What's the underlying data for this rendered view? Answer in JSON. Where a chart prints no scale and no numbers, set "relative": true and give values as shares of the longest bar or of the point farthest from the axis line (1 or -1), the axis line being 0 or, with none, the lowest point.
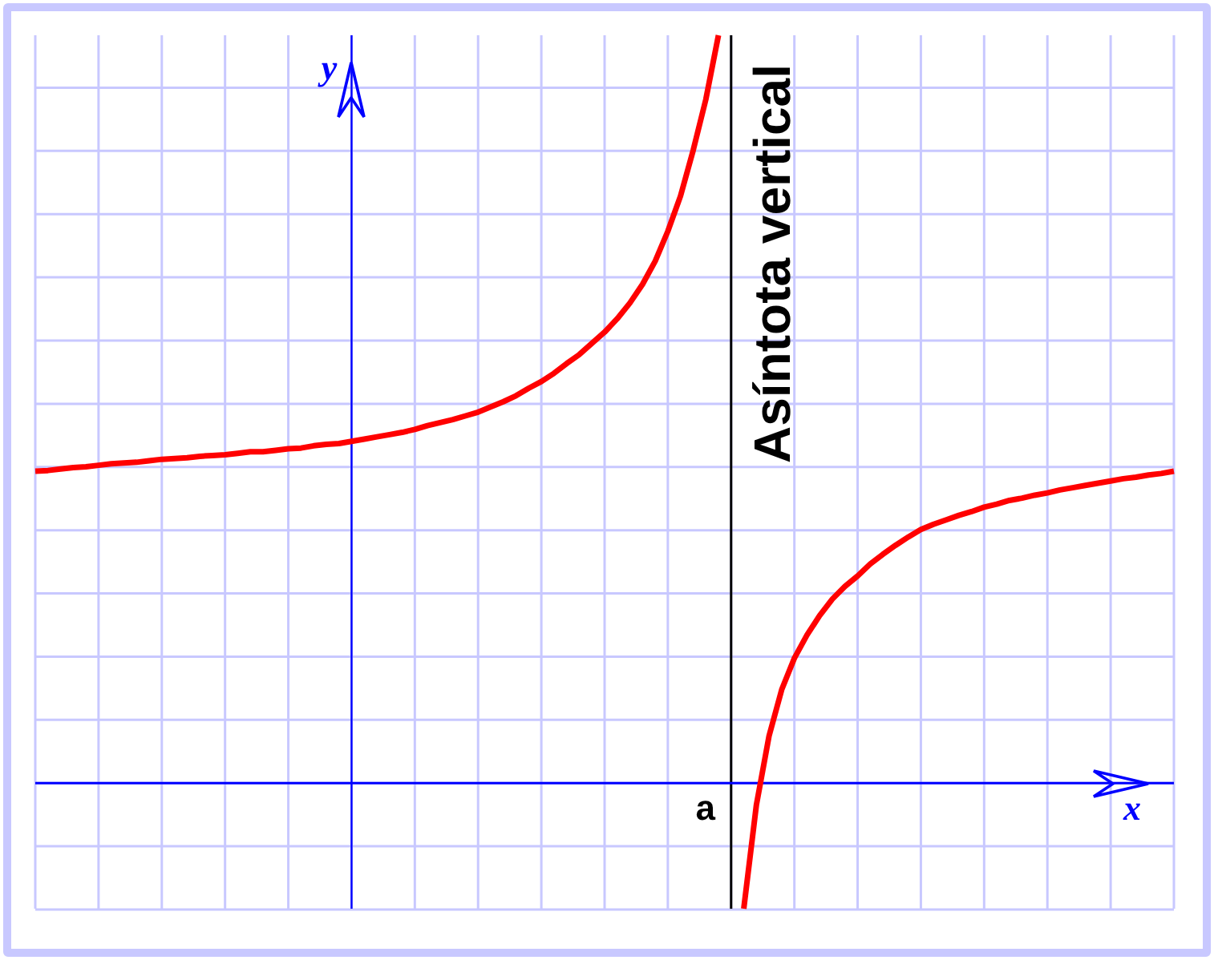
{
  "chart_data": {
    "type": "line",
    "relative": true,
    "xlabel": "x",
    "ylabel": "y",
    "annotations": [
      "a"
    ],
    "categories": [
      null,
      null,
      null,
      null,
      null,
      null,
      null,
      null,
      null,
      null,
      null,
      null,
      null,
      null,
      null,
      null,
      null,
      null,
      null,
      null,
      null,
      null,
      null,
      null,
      null,
      null,
      null,
      null,
      null,
      null,
      null,
      null,
      null,
      null,
      null,
      null,
      null,
      null,
      null,
      null,
      null,
      null,
      null,
      null,
      null,
      null,
      null,
      null,
      null,
      null,
      null,
      null,
      null,
      null,
      null,
      null,
      null,
      null,
      null,
      null,
      null,
      null,
      null,
      null,
      null,
      null,
      null,
      null,
      null,
      null,
      null,
      null,
      null,
      null,
      null,
      null,
      null,
      null,
      null,
      null,
      null,
      null,
      null,
      null,
      null,
      null,
      null,
      null,
      null,
      null,
      null
    ],
    "series": [
      {
        "color": "#ff0000",
        "values": [
          0.417,
          0.418,
          0.42,
          0.422,
          0.423,
          0.425,
          0.427,
          0.428,
          0.429,
          0.431,
          0.433,
          0.434,
          0.435,
          0.437,
          0.438,
          0.439,
          0.441,
          0.443,
          0.443,
          0.445,
          0.447,
          0.448,
          0.451,
          0.453,
          0.454,
          0.457,
          0.46,
          0.463,
          0.466,
          0.469,
          0.473,
          0.478,
          0.482,
          0.486,
          0.491,
          0.496,
          0.503,
          0.51,
          0.518,
          0.528,
          0.537,
          0.548,
          0.561,
          0.573,
          0.588,
          0.603,
          0.621,
          0.642,
          0.667,
          0.698,
          0.738,
          0.785,
          0.846,
          0.914,
          1,
          null,
          null,
          null,
          null,
          null,
          null,
          null,
          null,
          null,
          null,
          null,
          null,
          null,
          null,
          null,
          null,
          null,
          null,
          null,
          null,
          null,
          null,
          null,
          null,
          null,
          null,
          null,
          null,
          null,
          null,
          null,
          null,
          null,
          null,
          null,
          null
        ]
      },
      {
        "color": "#ff0000",
        "values": [
          null,
          null,
          null,
          null,
          null,
          null,
          null,
          null,
          null,
          null,
          null,
          null,
          null,
          null,
          null,
          null,
          null,
          null,
          null,
          null,
          null,
          null,
          null,
          null,
          null,
          null,
          null,
          null,
          null,
          null,
          null,
          null,
          null,
          null,
          null,
          null,
          null,
          null,
          null,
          null,
          null,
          null,
          null,
          null,
          null,
          null,
          null,
          null,
          null,
          null,
          null,
          null,
          null,
          null,
          null,
          null,
          -0.168,
          -0.029,
          0.063,
          0.125,
          0.167,
          0.198,
          0.224,
          0.246,
          0.263,
          0.277,
          0.293,
          0.306,
          0.318,
          0.329,
          0.339,
          0.346,
          0.352,
          0.358,
          0.363,
          0.369,
          0.373,
          0.378,
          0.381,
          0.385,
          0.388,
          0.392,
          0.395,
          0.398,
          0.401,
          0.404,
          0.407,
          0.409,
          0.412,
          0.414,
          0.417
        ]
      }
    ],
    "ref_lines": [
      {
        "axis": "x",
        "label": "Asíntota vertical",
        "color": "#000000"
      },
      {
        "axis": "y",
        "value": 0,
        "color": "#0000ff"
      }
    ],
    "grid": true,
    "legend": false
  }
}
